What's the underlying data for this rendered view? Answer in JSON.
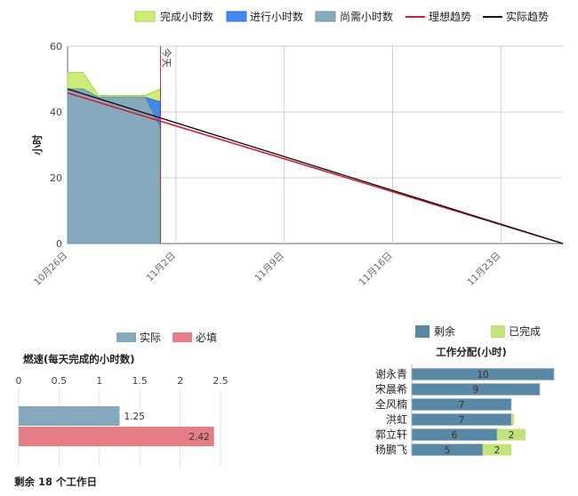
{
  "chart_data": [
    {
      "type": "area",
      "ylabel": "小时",
      "ylim": [
        0,
        60
      ],
      "yticks": [
        0,
        20,
        40,
        60
      ],
      "xticks": [
        "10月26日",
        "11月2日",
        "11月9日",
        "11月16日",
        "11月23日"
      ],
      "today_label": "今天",
      "legend": [
        "完成小时数",
        "进行小时数",
        "尚需小时数",
        "理想趋势",
        "实际趋势"
      ],
      "legend_position": "top",
      "x": [
        "10-26",
        "10-27",
        "10-28",
        "10-29",
        "10-30",
        "10-31",
        "11-1"
      ],
      "series": [
        {
          "name": "尚需小时数",
          "values": [
            47,
            47,
            44.5,
            44.5,
            44.5,
            44.5,
            35
          ]
        },
        {
          "name": "进行小时数",
          "values": [
            0,
            0,
            0,
            0,
            0,
            0,
            8
          ]
        },
        {
          "name": "完成小时数",
          "values": [
            5,
            5,
            0.5,
            0.5,
            0.5,
            0.5,
            4
          ]
        },
        {
          "name": "理想趋势",
          "points": [
            [
              "10-26",
              45.8
            ],
            [
              "11-27",
              0
            ]
          ]
        },
        {
          "name": "实际趋势",
          "points": [
            [
              "10-26",
              47
            ],
            [
              "11-27",
              0
            ]
          ]
        }
      ],
      "colors": {
        "完成小时数": "#ccee77",
        "进行小时数": "#4488ee",
        "尚需小时数": "#86a9be",
        "理想趋势": "#cc2233",
        "实际趋势": "#111111"
      },
      "grid": true
    },
    {
      "type": "bar",
      "orientation": "horizontal",
      "title": "燃速(每天完成的小时数)",
      "categories": [
        "实际",
        "必填"
      ],
      "values": [
        1.25,
        2.42
      ],
      "xlim": [
        0,
        2.5
      ],
      "xticks": [
        0,
        0.5,
        1,
        1.5,
        2,
        2.5
      ],
      "xtick_labels": [
        "0",
        "0.5",
        "1",
        "1.5",
        "2",
        "2.5"
      ],
      "legend": [
        "实际",
        "必填"
      ],
      "legend_position": "top",
      "colors": {
        "实际": "#86a9be",
        "必填": "#e57d87"
      }
    },
    {
      "type": "bar",
      "orientation": "horizontal",
      "stacked": true,
      "title": "工作分配(小时)",
      "categories": [
        "谢永青",
        "宋晨希",
        "全风楠",
        "洪虹",
        "郭立轩",
        "杨鹏飞"
      ],
      "legend": [
        "剩余",
        "已完成"
      ],
      "legend_position": "top",
      "series": [
        {
          "name": "剩余",
          "values": [
            10,
            9,
            7,
            7,
            6,
            5
          ]
        },
        {
          "name": "已完成",
          "values": [
            0,
            0,
            0,
            0.2,
            2,
            2
          ]
        }
      ],
      "value_labels": [
        [
          "10",
          ""
        ],
        [
          "9",
          ""
        ],
        [
          "7",
          ""
        ],
        [
          "7",
          ""
        ],
        [
          "6",
          "2"
        ],
        [
          "5",
          "2"
        ]
      ],
      "xlim": [
        0,
        10
      ],
      "colors": {
        "剩余": "#5a87a3",
        "已完成": "#c4e27a"
      }
    }
  ],
  "footer": {
    "text": "剩余 18 个工作日"
  }
}
